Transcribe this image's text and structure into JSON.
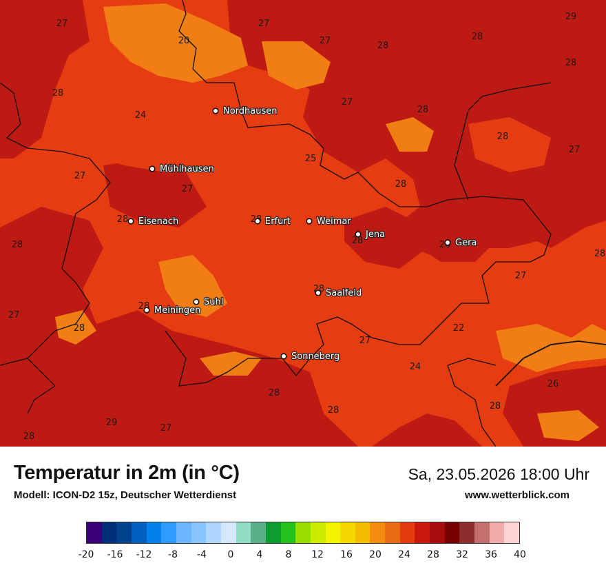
{
  "map": {
    "cities": [
      {
        "name": "Nordhausen"
      },
      {
        "name": "Mühlhausen"
      },
      {
        "name": "Eisenach"
      },
      {
        "name": "Erfurt"
      },
      {
        "name": "Weimar"
      },
      {
        "name": "Jena"
      },
      {
        "name": "Gera"
      },
      {
        "name": "Saalfeld"
      },
      {
        "name": "Suhl"
      },
      {
        "name": "Meiningen"
      },
      {
        "name": "Sonneberg"
      }
    ],
    "value_labels": [
      "27",
      "20",
      "27",
      "27",
      "28",
      "28",
      "28",
      "28",
      "24",
      "27",
      "28",
      "28",
      "27",
      "25",
      "27",
      "28",
      "27",
      "28",
      "28",
      "28",
      "28",
      "28",
      "28",
      "28",
      "28",
      "27",
      "27",
      "28",
      "22",
      "27",
      "24",
      "26",
      "28",
      "28",
      "28",
      "27",
      "29",
      "28",
      "29"
    ]
  },
  "footer": {
    "title": "Temperatur in 2m (in °C)",
    "model": "Modell: ICON-D2 15z, Deutscher Wetterdienst",
    "datetime": "Sa, 23.05.2026 18:00 Uhr",
    "website": "www.wetterblick.com"
  },
  "legend": {
    "colors": [
      "#3a0078",
      "#002f7a",
      "#00438c",
      "#0060c0",
      "#0080e8",
      "#2e9cff",
      "#6cb6ff",
      "#8ac4ff",
      "#b0d6ff",
      "#d4e8ff",
      "#90dcc0",
      "#5aae8a",
      "#0c9c30",
      "#24c01c",
      "#98dc00",
      "#ccec00",
      "#f4f400",
      "#f4d800",
      "#f4bc00",
      "#f48c10",
      "#ec6c14",
      "#e43c10",
      "#c8180c",
      "#a80c0c",
      "#780000",
      "#8c2c2c",
      "#c47070",
      "#f0aaaa",
      "#ffd4d4"
    ],
    "ticks": [
      "-20",
      "-16",
      "-12",
      "-8",
      "-4",
      "0",
      "4",
      "8",
      "12",
      "16",
      "20",
      "24",
      "28",
      "32",
      "36",
      "40"
    ]
  }
}
